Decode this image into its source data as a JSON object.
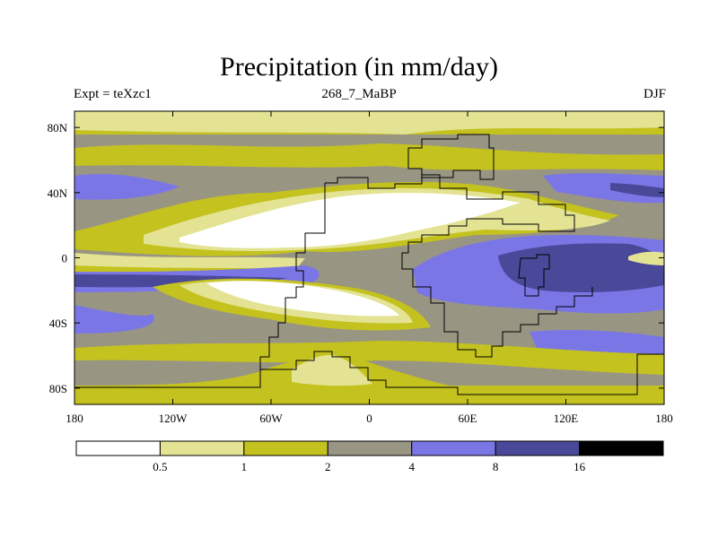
{
  "title": "Precipitation (in mm/day)",
  "subtitle_left": "Expt = teXzc1",
  "subtitle_center": "268_7_MaBP",
  "subtitle_right": "DJF",
  "map": {
    "lon_range": [
      -180,
      180
    ],
    "lat_range": [
      -90,
      90
    ],
    "x_ticks": [
      {
        "lon": -180,
        "label": "180"
      },
      {
        "lon": -120,
        "label": "120W"
      },
      {
        "lon": -60,
        "label": "60W"
      },
      {
        "lon": 0,
        "label": "0"
      },
      {
        "lon": 60,
        "label": "60E"
      },
      {
        "lon": 120,
        "label": "120E"
      },
      {
        "lon": 180,
        "label": "180"
      }
    ],
    "y_ticks": [
      {
        "lat": 80,
        "label": "80N"
      },
      {
        "lat": 40,
        "label": "40N"
      },
      {
        "lat": 0,
        "label": "0"
      },
      {
        "lat": -40,
        "label": "40S"
      },
      {
        "lat": -80,
        "label": "80S"
      }
    ]
  },
  "colorbar": {
    "colors": [
      "#ffffff",
      "#e3e393",
      "#c4c21e",
      "#999583",
      "#7b76e6",
      "#4a4899",
      "#000000"
    ],
    "labels": [
      "0.5",
      "1",
      "2",
      "4",
      "8",
      "16"
    ]
  }
}
